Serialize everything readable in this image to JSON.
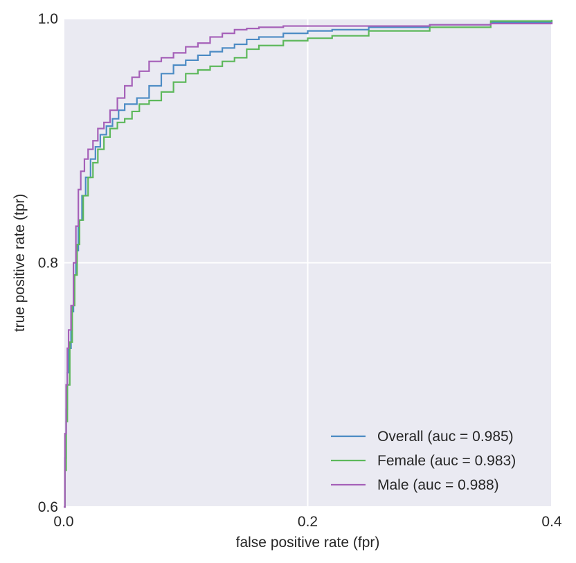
{
  "chart_data": {
    "type": "line",
    "title": "",
    "xlabel": "false positive rate (fpr)",
    "ylabel": "true positive rate (tpr)",
    "xlim": [
      0.0,
      0.4
    ],
    "ylim": [
      0.6,
      1.0
    ],
    "xticks": [
      0.0,
      0.2,
      0.4
    ],
    "xtick_labels": [
      "0.0",
      "0.2",
      "0.4"
    ],
    "yticks": [
      0.6,
      0.8,
      1.0
    ],
    "ytick_labels": [
      "0.6",
      "0.8",
      "1.0"
    ],
    "grid": true,
    "legend_position": "lower-right",
    "background_color": "#EAEAF2",
    "grid_color": "#FFFFFF",
    "series": [
      {
        "name": "Overall (auc = 0.985)",
        "color": "#4C8BC4",
        "x": [
          0.0,
          0.001,
          0.002,
          0.003,
          0.004,
          0.006,
          0.008,
          0.01,
          0.012,
          0.015,
          0.018,
          0.022,
          0.026,
          0.03,
          0.035,
          0.04,
          0.045,
          0.05,
          0.06,
          0.07,
          0.08,
          0.09,
          0.1,
          0.11,
          0.12,
          0.13,
          0.14,
          0.15,
          0.16,
          0.18,
          0.2,
          0.22,
          0.25,
          0.3,
          0.35,
          0.4
        ],
        "y": [
          0.6,
          0.64,
          0.68,
          0.71,
          0.73,
          0.76,
          0.79,
          0.81,
          0.835,
          0.855,
          0.87,
          0.885,
          0.895,
          0.905,
          0.912,
          0.918,
          0.925,
          0.93,
          0.935,
          0.945,
          0.955,
          0.962,
          0.966,
          0.97,
          0.973,
          0.976,
          0.979,
          0.983,
          0.985,
          0.988,
          0.99,
          0.991,
          0.993,
          0.995,
          0.997,
          0.998
        ]
      },
      {
        "name": "Female (auc = 0.983)",
        "color": "#5DB85B",
        "x": [
          0.0,
          0.001,
          0.002,
          0.003,
          0.005,
          0.007,
          0.009,
          0.011,
          0.013,
          0.016,
          0.02,
          0.024,
          0.028,
          0.033,
          0.038,
          0.044,
          0.05,
          0.056,
          0.062,
          0.07,
          0.08,
          0.09,
          0.1,
          0.11,
          0.12,
          0.13,
          0.14,
          0.15,
          0.16,
          0.18,
          0.2,
          0.22,
          0.25,
          0.3,
          0.35,
          0.4
        ],
        "y": [
          0.6,
          0.63,
          0.67,
          0.7,
          0.735,
          0.765,
          0.79,
          0.815,
          0.835,
          0.855,
          0.87,
          0.882,
          0.893,
          0.903,
          0.91,
          0.915,
          0.918,
          0.924,
          0.93,
          0.933,
          0.94,
          0.948,
          0.955,
          0.958,
          0.961,
          0.965,
          0.968,
          0.975,
          0.978,
          0.982,
          0.984,
          0.986,
          0.99,
          0.993,
          0.998,
          0.999
        ]
      },
      {
        "name": "Male (auc = 0.988)",
        "color": "#A560B8",
        "x": [
          0.0,
          0.001,
          0.002,
          0.003,
          0.004,
          0.006,
          0.008,
          0.01,
          0.012,
          0.014,
          0.017,
          0.02,
          0.024,
          0.028,
          0.033,
          0.038,
          0.044,
          0.05,
          0.056,
          0.062,
          0.07,
          0.08,
          0.09,
          0.1,
          0.11,
          0.12,
          0.13,
          0.14,
          0.15,
          0.16,
          0.18,
          0.2,
          0.25,
          0.3,
          0.35,
          0.4
        ],
        "y": [
          0.6,
          0.66,
          0.7,
          0.73,
          0.745,
          0.765,
          0.8,
          0.83,
          0.86,
          0.875,
          0.885,
          0.893,
          0.9,
          0.91,
          0.915,
          0.925,
          0.935,
          0.945,
          0.952,
          0.957,
          0.965,
          0.968,
          0.972,
          0.977,
          0.98,
          0.985,
          0.988,
          0.991,
          0.992,
          0.993,
          0.994,
          0.994,
          0.994,
          0.995,
          0.996,
          0.997
        ]
      }
    ]
  }
}
